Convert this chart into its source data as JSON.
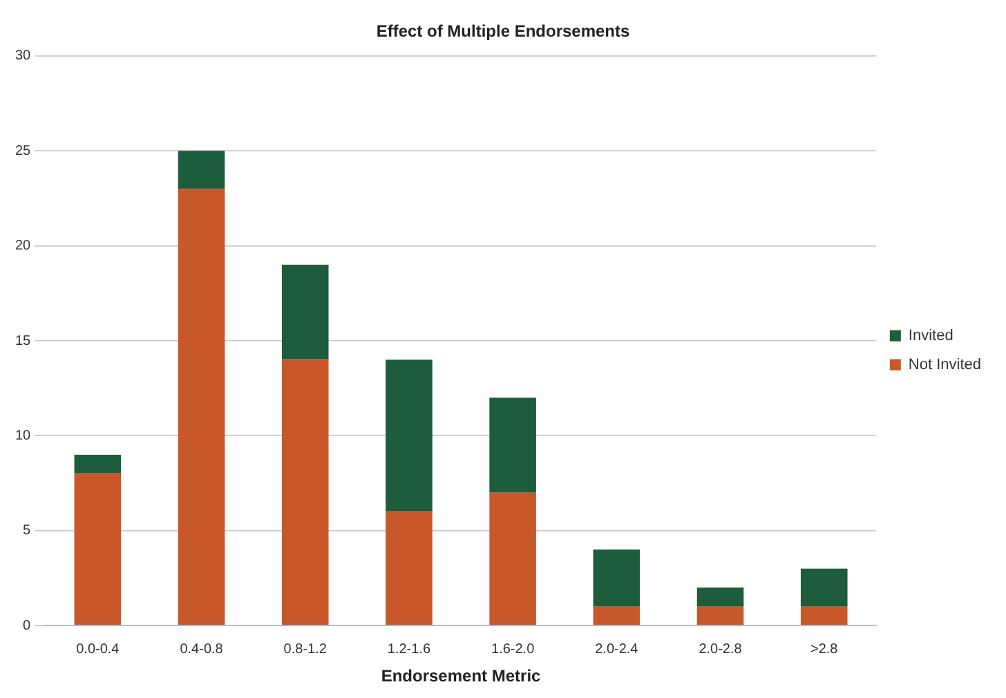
{
  "chart_data": {
    "type": "bar",
    "title": "Effect of Multiple Endorsements",
    "xlabel": "Endorsement Metric",
    "categories": [
      "0.0-0.4",
      "0.4-0.8",
      "0.8-1.2",
      "1.2-1.6",
      "1.6-2.0",
      "2.0-2.4",
      "2.0-2.8",
      ">2.8"
    ],
    "stacked": true,
    "series": [
      {
        "name": "Not Invited",
        "color": "#c8582a",
        "values": [
          8,
          23,
          14,
          6,
          7,
          1,
          1,
          1
        ]
      },
      {
        "name": "Invited",
        "color": "#1e5c3e",
        "values": [
          1,
          2,
          5,
          8,
          5,
          3,
          1,
          2
        ]
      }
    ],
    "ylim": [
      0,
      30
    ],
    "yticks": [
      0,
      5,
      10,
      15,
      20,
      25,
      30
    ],
    "grid": "y",
    "legend": "right"
  }
}
